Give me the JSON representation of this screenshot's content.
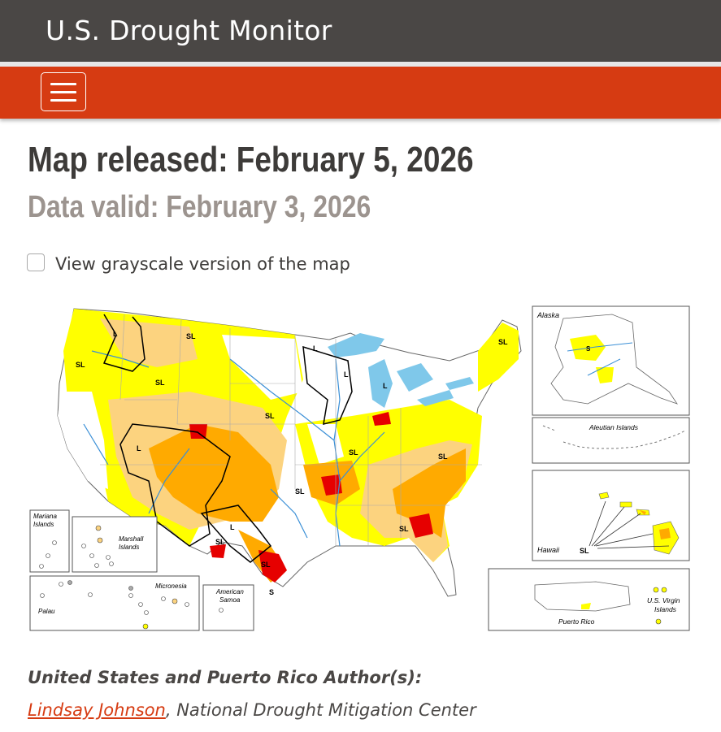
{
  "header": {
    "site_title": "U.S. Drought Monitor"
  },
  "nav": {
    "menu_icon": "hamburger-menu-icon"
  },
  "main": {
    "map_released": "Map released: February 5, 2026",
    "data_valid": "Data valid: February 3, 2026",
    "grayscale_label": "View grayscale version of the map",
    "grayscale_checked": false
  },
  "map": {
    "inset_labels": {
      "alaska": "Alaska",
      "aleutian": "Aleutian Islands",
      "hawaii": "Hawaii",
      "puerto_rico": "Puerto Rico",
      "virgin_islands_1": "U.S. Virgin",
      "virgin_islands_2": "Islands",
      "mariana_1": "Mariana",
      "mariana_2": "Islands",
      "marshall_1": "Marshall",
      "marshall_2": "Islands",
      "micronesia": "Micronesia",
      "palau": "Palau",
      "samoa_1": "American",
      "samoa_2": "Samoa"
    },
    "impact_labels": {
      "sl": "SL",
      "l": "L",
      "s": "S"
    },
    "colors": {
      "d0": "#ffff00",
      "d1": "#fcd37f",
      "d2": "#ffaa00",
      "d3": "#e60000",
      "d4": "#730000",
      "water": "#7fc8ea",
      "rivers": "#3a8fd6"
    }
  },
  "authors": {
    "heading": "United States and Puerto Rico Author(s):",
    "name": "Lindsay Johnson",
    "affiliation": ", National Drought Mitigation Center"
  }
}
